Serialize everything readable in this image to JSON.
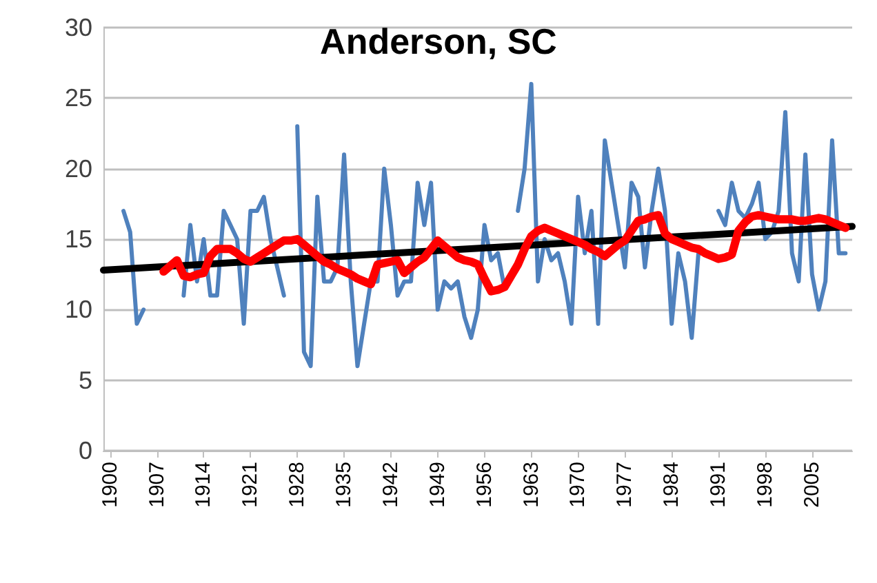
{
  "chart_data": {
    "type": "line",
    "title": "Anderson, SC",
    "xlim": [
      1899,
      2011
    ],
    "xticks": [
      1900,
      1907,
      1914,
      1921,
      1928,
      1935,
      1942,
      1949,
      1956,
      1963,
      1970,
      1977,
      1984,
      1991,
      1998,
      2005
    ],
    "ylim": [
      0,
      30
    ],
    "yticks": [
      0,
      5,
      10,
      15,
      20,
      25,
      30
    ],
    "grid": "y",
    "marker": "none",
    "line_style": "solid",
    "series": [
      {
        "color": "#4f81bd",
        "x": [
          1902,
          1903,
          1904,
          1905,
          1906,
          1907,
          1908,
          1909,
          1910,
          1911,
          1912,
          1913,
          1914,
          1915,
          1916,
          1917,
          1918,
          1919,
          1920,
          1921,
          1922,
          1923,
          1924,
          1925,
          1926,
          1927,
          1928,
          1929,
          1930,
          1931,
          1932,
          1933,
          1934,
          1935,
          1936,
          1937,
          1938,
          1939,
          1940,
          1941,
          1942,
          1943,
          1944,
          1945,
          1946,
          1947,
          1948,
          1949,
          1950,
          1951,
          1952,
          1953,
          1954,
          1955,
          1956,
          1957,
          1958,
          1959,
          1960,
          1961,
          1962,
          1963,
          1964,
          1965,
          1966,
          1967,
          1968,
          1969,
          1970,
          1971,
          1972,
          1973,
          1974,
          1975,
          1976,
          1977,
          1978,
          1979,
          1980,
          1981,
          1982,
          1983,
          1984,
          1985,
          1986,
          1987,
          1988,
          1989,
          1990,
          1991,
          1992,
          1993,
          1994,
          1995,
          1996,
          1997,
          1998,
          1999,
          2000,
          2001,
          2002,
          2003,
          2004,
          2005,
          2006,
          2007,
          2008,
          2009,
          2010
        ],
        "values": [
          17,
          15.5,
          9,
          10,
          null,
          null,
          null,
          null,
          null,
          11,
          16,
          12,
          15,
          11,
          11,
          17,
          16,
          15,
          9,
          17,
          17,
          18,
          15,
          13,
          11,
          null,
          23,
          7,
          6,
          18,
          12,
          12,
          13,
          21,
          12,
          6,
          9,
          12,
          12,
          20,
          16,
          11,
          12,
          12,
          19,
          16,
          19,
          10,
          12,
          11.5,
          12,
          9.5,
          8,
          10,
          16,
          13.5,
          14,
          11.5,
          null,
          17,
          20,
          26,
          12,
          15,
          13.5,
          14,
          12,
          9,
          18,
          14,
          17,
          9,
          22,
          19,
          16,
          13,
          19,
          18,
          13,
          17,
          20,
          17,
          9,
          14,
          12,
          8,
          14,
          14,
          null,
          17,
          16,
          19,
          17,
          16.5,
          17.5,
          19,
          15,
          15.5,
          17,
          24,
          14,
          12,
          21,
          12.5,
          10,
          12,
          22,
          14,
          14
        ]
      },
      {
        "color": "#000000",
        "x": [
          1899,
          2011
        ],
        "values": [
          12.8,
          15.9
        ]
      },
      {
        "color": "#ff0000",
        "x": [
          1908,
          1909,
          1910,
          1911,
          1912,
          1913,
          1914,
          1915,
          1916,
          1917,
          1918,
          1919,
          1920,
          1921,
          1922,
          1923,
          1924,
          1925,
          1926,
          1927,
          1928,
          1929,
          1930,
          1931,
          1932,
          1933,
          1934,
          1935,
          1936,
          1937,
          1938,
          1939,
          1940,
          1941,
          1942,
          1943,
          1944,
          1945,
          1946,
          1947,
          1948,
          1949,
          1950,
          1951,
          1952,
          1953,
          1954,
          1955,
          1956,
          1957,
          1958,
          1959,
          1960,
          1961,
          1962,
          1963,
          1964,
          1965,
          1966,
          1967,
          1968,
          1969,
          1970,
          1971,
          1972,
          1973,
          1974,
          1975,
          1976,
          1977,
          1978,
          1979,
          1980,
          1981,
          1982,
          1983,
          1984,
          1985,
          1986,
          1987,
          1988,
          1989,
          1990,
          1991,
          1992,
          1993,
          1994,
          1995,
          1996,
          1997,
          1998,
          1999,
          2000,
          2001,
          2002,
          2003,
          2004,
          2005,
          2006,
          2007,
          2008,
          2009,
          2010
        ],
        "values": [
          12.7,
          13.1,
          13.5,
          12.4,
          12.3,
          12.5,
          12.6,
          13.8,
          14.3,
          14.3,
          14.3,
          14.0,
          13.6,
          13.4,
          13.7,
          14.0,
          14.3,
          14.6,
          14.9,
          14.9,
          15.0,
          14.6,
          14.2,
          13.8,
          13.4,
          13.2,
          12.9,
          12.7,
          12.5,
          12.2,
          12.0,
          11.8,
          13.2,
          13.3,
          13.4,
          13.5,
          12.6,
          13.0,
          13.4,
          13.7,
          14.3,
          14.9,
          14.5,
          14.1,
          13.7,
          13.5,
          13.4,
          13.2,
          12.2,
          11.3,
          11.4,
          11.6,
          12.4,
          13.2,
          14.3,
          15.2,
          15.6,
          15.8,
          15.6,
          15.4,
          15.2,
          15.0,
          14.8,
          14.6,
          14.3,
          14.1,
          13.8,
          14.2,
          14.6,
          14.9,
          15.6,
          16.3,
          16.4,
          16.6,
          16.7,
          15.4,
          15.0,
          14.8,
          14.6,
          14.4,
          14.3,
          14.0,
          13.8,
          13.6,
          13.7,
          13.9,
          15.6,
          16.2,
          16.6,
          16.7,
          16.6,
          16.5,
          16.4,
          16.4,
          16.4,
          16.3,
          16.3,
          16.4,
          16.5,
          16.4,
          16.2,
          16.0,
          15.8
        ]
      }
    ]
  }
}
